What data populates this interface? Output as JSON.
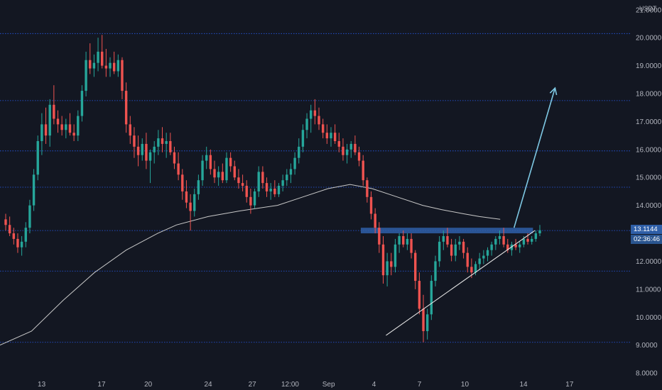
{
  "chart_data": {
    "type": "candlestick",
    "unit_label": "USDT",
    "y_ticks": [
      "21.0000",
      "20.0000",
      "19.0000",
      "18.0000",
      "17.0000",
      "16.0000",
      "15.0000",
      "14.0000",
      "12.0000",
      "11.0000",
      "10.0000",
      "9.0000",
      "8.0000"
    ],
    "y_tick_values": [
      21,
      20,
      19,
      18,
      17,
      16,
      15,
      14,
      12,
      11,
      10,
      9,
      8
    ],
    "x_ticks": [
      "13",
      "17",
      "20",
      "24",
      "27",
      "12:00",
      "Sep",
      "4",
      "7",
      "10",
      "14",
      "17"
    ],
    "ylim": [
      7.85,
      21.35
    ],
    "horizontal_levels": [
      20.15,
      17.75,
      15.95,
      14.65,
      13.1,
      11.65,
      9.1
    ],
    "current_price": "13.1144",
    "countdown": "02:36:46",
    "colors": {
      "up": "#26a69a",
      "down": "#ef5350",
      "background": "#131722",
      "grid": "#2962ff",
      "zone": "#2f5fa8",
      "arrow": "#7ec8e3",
      "ma": "#c8c8c8"
    },
    "candles": [
      [
        13.5,
        13.7,
        13.1,
        13.3
      ],
      [
        13.3,
        13.6,
        12.9,
        13.0
      ],
      [
        13.0,
        13.2,
        12.6,
        12.8
      ],
      [
        12.8,
        13.0,
        12.3,
        12.5
      ],
      [
        12.5,
        12.9,
        12.2,
        12.7
      ],
      [
        12.7,
        13.4,
        12.5,
        13.2
      ],
      [
        13.2,
        14.2,
        13.0,
        14.0
      ],
      [
        14.0,
        15.3,
        13.8,
        15.1
      ],
      [
        15.1,
        16.5,
        14.9,
        16.3
      ],
      [
        16.3,
        17.3,
        15.8,
        16.9
      ],
      [
        16.9,
        17.5,
        16.2,
        16.5
      ],
      [
        16.5,
        17.8,
        16.1,
        17.6
      ],
      [
        17.6,
        18.3,
        16.9,
        17.1
      ],
      [
        17.1,
        17.4,
        16.6,
        16.9
      ],
      [
        16.9,
        17.2,
        16.5,
        16.7
      ],
      [
        16.7,
        17.1,
        16.4,
        16.9
      ],
      [
        16.9,
        17.3,
        16.5,
        16.6
      ],
      [
        16.6,
        16.9,
        16.3,
        16.5
      ],
      [
        16.5,
        17.4,
        16.3,
        17.2
      ],
      [
        17.2,
        18.3,
        17.0,
        18.1
      ],
      [
        18.1,
        19.5,
        17.9,
        19.2
      ],
      [
        19.2,
        19.8,
        18.7,
        18.9
      ],
      [
        18.9,
        19.4,
        18.6,
        19.1
      ],
      [
        19.1,
        20.0,
        18.8,
        19.5
      ],
      [
        19.5,
        20.1,
        18.9,
        19.0
      ],
      [
        19.0,
        19.6,
        18.6,
        18.9
      ],
      [
        18.9,
        19.3,
        18.6,
        19.1
      ],
      [
        19.1,
        19.5,
        18.7,
        18.8
      ],
      [
        18.8,
        19.4,
        18.6,
        19.2
      ],
      [
        19.2,
        19.3,
        17.8,
        18.1
      ],
      [
        18.1,
        18.4,
        16.6,
        16.9
      ],
      [
        16.9,
        17.2,
        16.2,
        16.5
      ],
      [
        16.5,
        16.8,
        15.7,
        16.1
      ],
      [
        16.1,
        16.5,
        15.4,
        15.8
      ],
      [
        15.8,
        16.4,
        15.6,
        16.2
      ],
      [
        16.2,
        16.6,
        15.3,
        15.6
      ],
      [
        15.6,
        16.0,
        14.8,
        15.9
      ],
      [
        15.9,
        16.3,
        15.5,
        16.1
      ],
      [
        16.1,
        16.7,
        15.8,
        16.4
      ],
      [
        16.4,
        16.8,
        15.9,
        16.2
      ],
      [
        16.2,
        16.6,
        15.7,
        16.3
      ],
      [
        16.3,
        16.6,
        15.8,
        15.9
      ],
      [
        15.9,
        16.1,
        15.3,
        15.5
      ],
      [
        15.5,
        15.9,
        14.9,
        15.1
      ],
      [
        15.1,
        15.3,
        14.2,
        14.5
      ],
      [
        14.5,
        14.9,
        13.9,
        14.1
      ],
      [
        14.1,
        14.4,
        13.1,
        13.8
      ],
      [
        13.8,
        14.6,
        13.6,
        14.4
      ],
      [
        14.4,
        15.1,
        14.2,
        14.9
      ],
      [
        14.9,
        15.8,
        14.7,
        15.6
      ],
      [
        15.6,
        16.1,
        15.3,
        15.8
      ],
      [
        15.8,
        16.0,
        15.1,
        15.3
      ],
      [
        15.3,
        15.6,
        14.8,
        15.0
      ],
      [
        15.0,
        15.4,
        14.7,
        15.2
      ],
      [
        15.2,
        15.5,
        14.8,
        14.9
      ],
      [
        14.9,
        15.9,
        14.8,
        15.7
      ],
      [
        15.7,
        15.9,
        15.2,
        15.4
      ],
      [
        15.4,
        15.6,
        14.9,
        15.0
      ],
      [
        15.0,
        15.3,
        14.6,
        14.8
      ],
      [
        14.8,
        15.1,
        14.5,
        14.7
      ],
      [
        14.7,
        14.9,
        14.1,
        14.3
      ],
      [
        14.3,
        14.6,
        13.7,
        14.0
      ],
      [
        14.0,
        14.6,
        13.9,
        14.5
      ],
      [
        14.5,
        15.4,
        14.3,
        15.2
      ],
      [
        15.2,
        15.4,
        14.6,
        14.8
      ],
      [
        14.8,
        15.0,
        14.3,
        14.5
      ],
      [
        14.5,
        14.8,
        14.2,
        14.6
      ],
      [
        14.6,
        14.9,
        14.3,
        14.4
      ],
      [
        14.4,
        14.8,
        14.3,
        14.7
      ],
      [
        14.7,
        15.1,
        14.5,
        14.9
      ],
      [
        14.9,
        15.3,
        14.7,
        15.1
      ],
      [
        15.1,
        15.5,
        14.8,
        15.3
      ],
      [
        15.3,
        15.9,
        15.1,
        15.7
      ],
      [
        15.7,
        16.4,
        15.5,
        16.1
      ],
      [
        16.1,
        16.9,
        15.9,
        16.7
      ],
      [
        16.7,
        17.3,
        16.4,
        17.1
      ],
      [
        17.1,
        17.6,
        16.6,
        17.4
      ],
      [
        17.4,
        17.8,
        16.9,
        17.2
      ],
      [
        17.2,
        17.5,
        16.7,
        16.9
      ],
      [
        16.9,
        17.1,
        16.4,
        16.6
      ],
      [
        16.6,
        16.9,
        16.2,
        16.4
      ],
      [
        16.4,
        16.8,
        16.1,
        16.6
      ],
      [
        16.6,
        16.9,
        16.2,
        16.3
      ],
      [
        16.3,
        16.6,
        15.9,
        16.1
      ],
      [
        16.1,
        16.4,
        15.6,
        15.8
      ],
      [
        15.8,
        16.2,
        15.5,
        16.0
      ],
      [
        16.0,
        16.3,
        15.7,
        16.2
      ],
      [
        16.2,
        16.5,
        15.8,
        15.9
      ],
      [
        15.9,
        16.1,
        15.4,
        15.6
      ],
      [
        15.6,
        15.8,
        14.7,
        14.9
      ],
      [
        14.9,
        15.0,
        14.1,
        14.3
      ],
      [
        14.3,
        14.5,
        13.5,
        13.7
      ],
      [
        13.7,
        13.9,
        13.0,
        13.2
      ],
      [
        13.2,
        13.4,
        12.3,
        12.6
      ],
      [
        12.6,
        12.9,
        11.2,
        11.5
      ],
      [
        11.5,
        12.3,
        11.1,
        12.0
      ],
      [
        12.0,
        12.3,
        11.5,
        11.8
      ],
      [
        11.8,
        12.8,
        11.6,
        12.6
      ],
      [
        12.6,
        13.0,
        12.3,
        12.9
      ],
      [
        12.9,
        13.1,
        12.5,
        12.6
      ],
      [
        12.6,
        13.0,
        12.4,
        12.8
      ],
      [
        12.8,
        13.0,
        12.1,
        12.3
      ],
      [
        12.3,
        12.4,
        11.0,
        11.3
      ],
      [
        11.3,
        11.6,
        10.1,
        10.3
      ],
      [
        10.3,
        10.8,
        9.1,
        9.5
      ],
      [
        9.5,
        10.3,
        9.2,
        10.1
      ],
      [
        10.1,
        11.5,
        9.9,
        11.3
      ],
      [
        11.3,
        12.2,
        11.1,
        12.0
      ],
      [
        12.0,
        12.9,
        11.8,
        12.7
      ],
      [
        12.7,
        13.1,
        12.4,
        12.9
      ],
      [
        12.9,
        13.2,
        12.5,
        12.6
      ],
      [
        12.6,
        12.8,
        12.0,
        12.2
      ],
      [
        12.2,
        12.8,
        12.0,
        12.6
      ],
      [
        12.6,
        12.9,
        12.4,
        12.7
      ],
      [
        12.7,
        12.8,
        12.1,
        12.3
      ],
      [
        12.3,
        12.5,
        11.6,
        11.8
      ],
      [
        11.8,
        12.1,
        11.4,
        11.6
      ],
      [
        11.6,
        12.0,
        11.5,
        11.9
      ],
      [
        11.9,
        12.3,
        11.7,
        12.1
      ],
      [
        12.1,
        12.4,
        11.9,
        12.2
      ],
      [
        12.2,
        12.5,
        12.0,
        12.4
      ],
      [
        12.4,
        12.7,
        12.2,
        12.6
      ],
      [
        12.6,
        12.9,
        12.4,
        12.8
      ],
      [
        12.8,
        13.1,
        12.6,
        12.9
      ],
      [
        12.9,
        13.2,
        12.5,
        12.6
      ],
      [
        12.6,
        12.8,
        12.3,
        12.4
      ],
      [
        12.4,
        12.7,
        12.2,
        12.6
      ],
      [
        12.6,
        12.8,
        12.4,
        12.5
      ],
      [
        12.5,
        12.7,
        12.3,
        12.6
      ],
      [
        12.6,
        12.9,
        12.5,
        12.8
      ],
      [
        12.8,
        13.0,
        12.6,
        12.7
      ],
      [
        12.7,
        12.9,
        12.6,
        12.8
      ],
      [
        12.8,
        13.1,
        12.7,
        13.0
      ],
      [
        13.0,
        13.3,
        12.9,
        13.11
      ]
    ],
    "ma": [
      [
        0,
        9.0
      ],
      [
        0.05,
        9.5
      ],
      [
        0.1,
        10.6
      ],
      [
        0.15,
        11.6
      ],
      [
        0.2,
        12.4
      ],
      [
        0.25,
        13.0
      ],
      [
        0.28,
        13.3
      ],
      [
        0.33,
        13.6
      ],
      [
        0.38,
        13.8
      ],
      [
        0.44,
        14.0
      ],
      [
        0.48,
        14.3
      ],
      [
        0.52,
        14.6
      ],
      [
        0.555,
        14.75
      ],
      [
        0.59,
        14.6
      ],
      [
        0.63,
        14.3
      ],
      [
        0.67,
        14.0
      ],
      [
        0.7,
        13.85
      ],
      [
        0.735,
        13.7
      ],
      [
        0.76,
        13.6
      ],
      [
        0.793,
        13.5
      ]
    ],
    "zone": [
      0.572,
      0.845,
      13.0,
      13.2
    ],
    "support_line": [
      [
        0.612,
        9.35
      ],
      [
        0.848,
        13.1
      ]
    ],
    "arrow": [
      [
        0.815,
        13.2
      ],
      [
        0.88,
        18.2
      ]
    ],
    "x_ticks_pos": [
      0.066,
      0.161,
      0.235,
      0.33,
      0.4,
      0.46,
      0.521,
      0.593,
      0.665,
      0.737,
      0.83,
      0.903
    ]
  }
}
